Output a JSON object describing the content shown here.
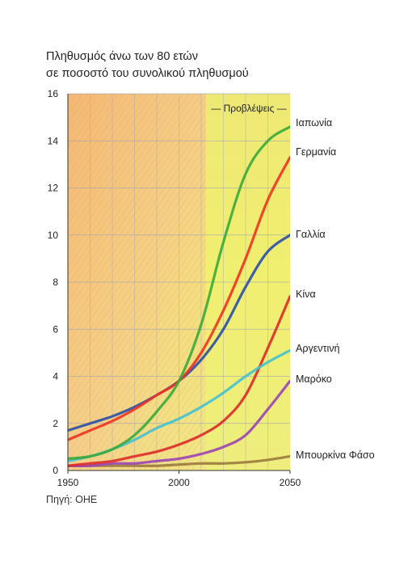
{
  "title_line1": "Πληθυσμός άνω των 80 ετών",
  "title_line2": "σε ποσοστό του συνολικού πληθυσμού",
  "source": "Πηγή: ΟΗΕ",
  "projection_label": "— Προβλέψεις —",
  "chart_data": {
    "type": "line",
    "title": "Πληθυσμός άνω των 80 ετών σε ποσοστό του συνολικού πληθυσμού",
    "xlim": [
      1950,
      2050
    ],
    "ylim": [
      0,
      16
    ],
    "x_ticks": [
      1950,
      2000,
      2050
    ],
    "y_ticks": [
      0,
      2,
      4,
      6,
      8,
      10,
      12,
      14,
      16
    ],
    "grid": true,
    "projection_start": 2012,
    "x": [
      1950,
      1960,
      1970,
      1980,
      1990,
      2000,
      2010,
      2020,
      2030,
      2040,
      2050
    ],
    "series": [
      {
        "name": "Ιαπωνία",
        "color": "#3aaa3a",
        "values": [
          0.5,
          0.6,
          0.9,
          1.5,
          2.5,
          3.8,
          6.2,
          9.7,
          12.6,
          14.0,
          14.6
        ]
      },
      {
        "name": "Γερμανία",
        "color": "#ee3322",
        "values": [
          1.3,
          1.7,
          2.1,
          2.6,
          3.2,
          3.8,
          5.0,
          6.8,
          9.0,
          11.5,
          13.3
        ]
      },
      {
        "name": "Γαλλία",
        "color": "#2a4fa8",
        "values": [
          1.7,
          2.0,
          2.3,
          2.7,
          3.2,
          3.8,
          4.7,
          6.0,
          7.8,
          9.3,
          10.0
        ]
      },
      {
        "name": "Κίνα",
        "color": "#dd2a2a",
        "values": [
          0.2,
          0.3,
          0.4,
          0.6,
          0.8,
          1.1,
          1.5,
          2.1,
          3.2,
          5.2,
          7.4
        ]
      },
      {
        "name": "Αργεντινή",
        "color": "#44c1d2",
        "values": [
          0.4,
          0.6,
          0.9,
          1.3,
          1.8,
          2.2,
          2.7,
          3.3,
          4.0,
          4.6,
          5.1
        ]
      },
      {
        "name": "Μαρόκο",
        "color": "#9a45b5",
        "values": [
          0.2,
          0.2,
          0.3,
          0.3,
          0.4,
          0.5,
          0.7,
          1.0,
          1.5,
          2.6,
          3.8
        ]
      },
      {
        "name": "Μπουρκίνα Φάσο",
        "color": "#9a7a3e",
        "values": [
          0.2,
          0.2,
          0.2,
          0.2,
          0.2,
          0.25,
          0.3,
          0.3,
          0.35,
          0.45,
          0.6
        ]
      }
    ]
  }
}
